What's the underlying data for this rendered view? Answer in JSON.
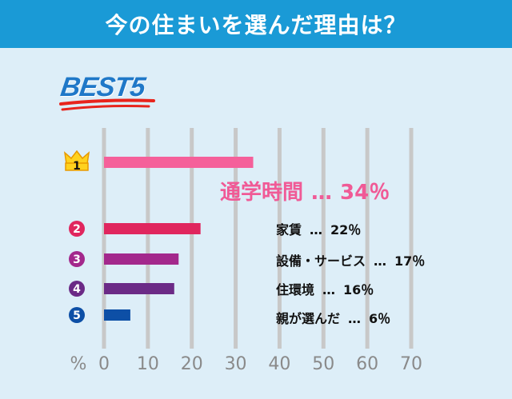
{
  "header": {
    "title": "今の住まいを選んだ理由は？"
  },
  "badge": {
    "text": "BEST5"
  },
  "colors": {
    "header_bg": "#1a9ad6",
    "panel_bg": "#ddeef8",
    "grid": "#c8c8c8"
  },
  "chart_data": {
    "type": "bar",
    "orientation": "horizontal",
    "categories": [
      "通学時間",
      "家賃",
      "設備・サービス",
      "住環境",
      "親が選んだ"
    ],
    "values": [
      34,
      22,
      17,
      16,
      6
    ],
    "value_labels": [
      "34％",
      "22％",
      "17％",
      "16％",
      "6％"
    ],
    "separator": "…",
    "ranks": [
      "1",
      "2",
      "3",
      "4",
      "5"
    ],
    "bar_colors": [
      "#f5609a",
      "#e0265e",
      "#a3288c",
      "#6b2a86",
      "#0d4fa6"
    ],
    "xlabel": "%",
    "xlim": [
      0,
      70
    ],
    "xticks": [
      "0",
      "10",
      "20",
      "30",
      "40",
      "50",
      "60",
      "70"
    ],
    "grid": true
  }
}
